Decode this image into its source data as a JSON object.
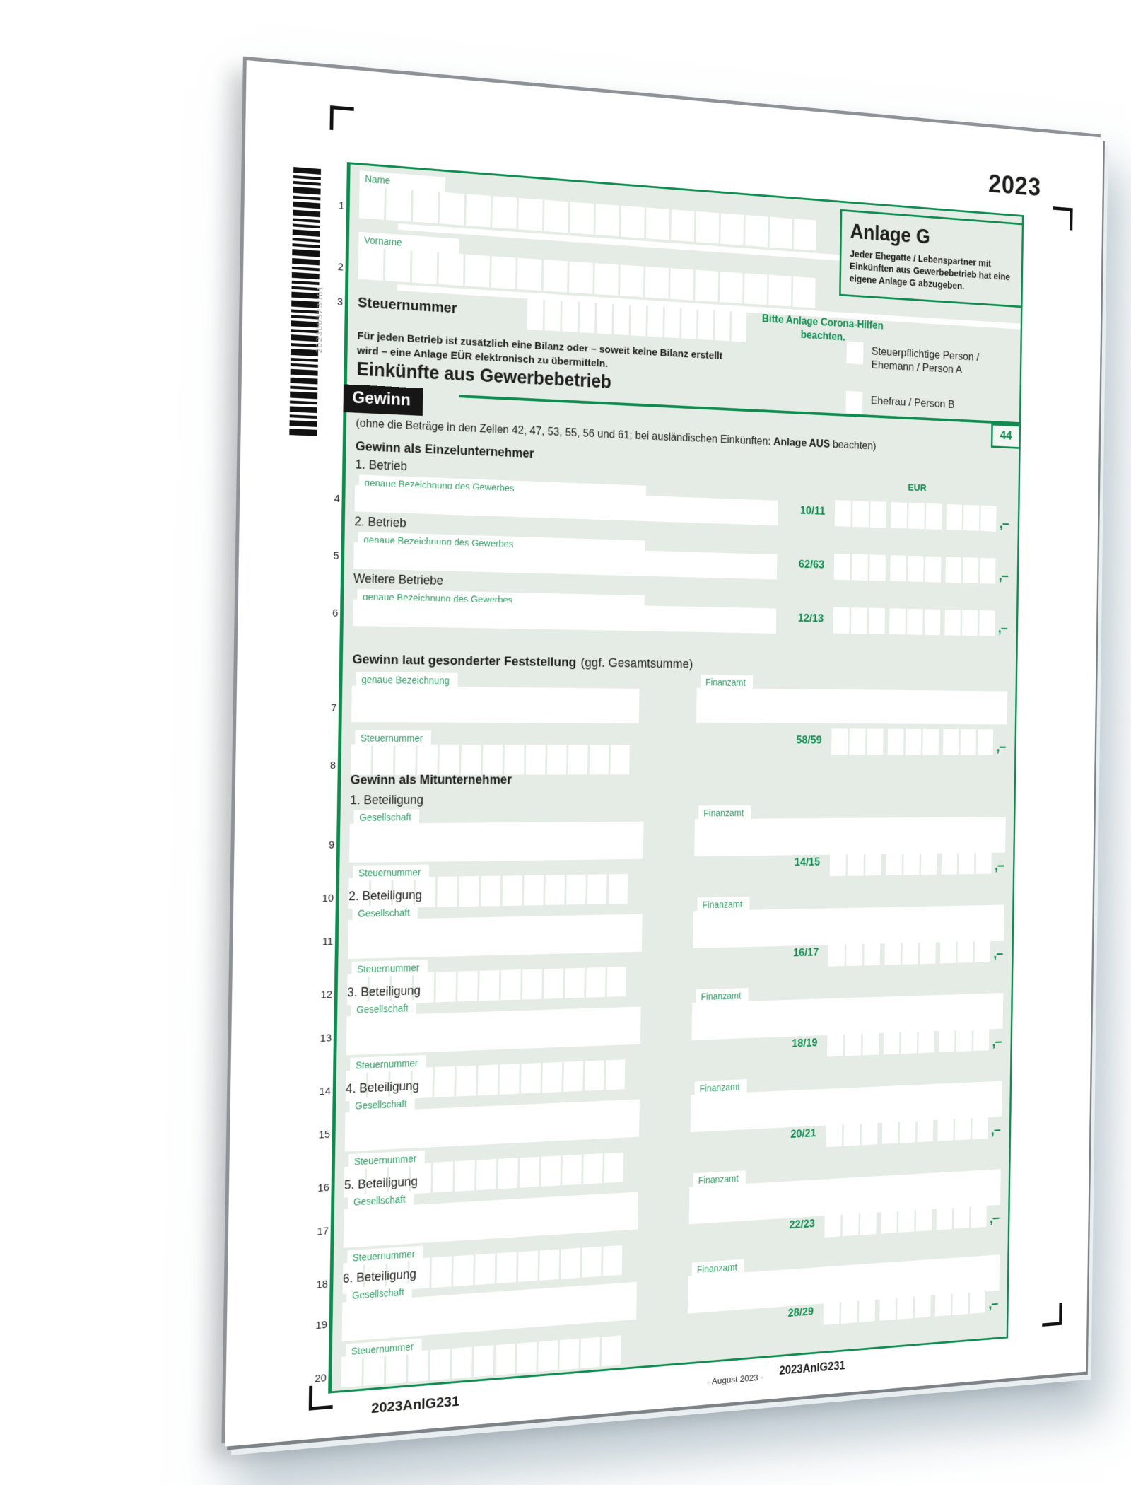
{
  "year": "2023",
  "barcode": {
    "number": "202300323001"
  },
  "page_header": {
    "name_label": "Name",
    "vorname_label": "Vorname",
    "steuernummer_label": "Steuernummer",
    "line_1": "1",
    "line_2": "2",
    "line_3": "3",
    "corona_note": "Bitte Anlage Corona-Hilfen beachten.",
    "bilanz_note": "Für jeden Betrieb ist zusätzlich eine Bilanz oder – soweit keine Bilanz erstellt wird – eine Anlage EÜR elektronisch zu übermitteln."
  },
  "anlage_box": {
    "title": "Anlage G",
    "note": "Jeder Ehegatte / Lebenspartner mit Einkünften aus Gewerbebetrieb hat eine eigene Anlage G abzugeben."
  },
  "person_checkboxes": [
    {
      "label": "Steuerpflichtige Person / Ehemann / Person A"
    },
    {
      "label": "Ehefrau / Person B"
    }
  ],
  "section_heading": "Einkünfte aus Gewerbebetrieb",
  "gewinn": {
    "bar_label": "Gewinn",
    "box_number": "44",
    "intro_prefix": "(ohne die Beträge in den Zeilen 42, 47, 53, 55, 56 und 61; bei ausländischen Einkünften: ",
    "intro_bold": "Anlage AUS",
    "intro_suffix": " beachten)",
    "eur_label": "EUR",
    "einzelunternehmer": {
      "heading": "Gewinn als Einzelunternehmer",
      "sub_label": "genaue Bezeichnung des Gewerbes",
      "rows": [
        {
          "line": "4",
          "label": "1. Betrieb",
          "code": "10/11"
        },
        {
          "line": "5",
          "label": "2. Betrieb",
          "code": "62/63"
        },
        {
          "line": "6",
          "label": "Weitere Betriebe",
          "code": "12/13"
        }
      ]
    },
    "feststellung": {
      "heading_bold": "Gewinn laut gesonderter Feststellung",
      "heading_normal": "(ggf. Gesamtsumme)",
      "bezeichnung_label": "genaue Bezeichnung",
      "finanzamt_label": "Finanzamt",
      "steuernummer_label": "Steuernummer",
      "line_top": "7",
      "line_bottom": "8",
      "code": "58/59"
    },
    "mitunternehmer": {
      "heading": "Gewinn als Mitunternehmer",
      "gesellschaft_label": "Gesellschaft",
      "finanzamt_label": "Finanzamt",
      "steuernummer_label": "Steuernummer",
      "blocks": [
        {
          "label": "1. Beteiligung",
          "line_top": "9",
          "line_bottom": "10",
          "code": "14/15"
        },
        {
          "label": "2. Beteiligung",
          "line_top": "11",
          "line_bottom": "12",
          "code": "16/17"
        },
        {
          "label": "3. Beteiligung",
          "line_top": "13",
          "line_bottom": "14",
          "code": "18/19"
        },
        {
          "label": "4. Beteiligung",
          "line_top": "15",
          "line_bottom": "16",
          "code": "20/21"
        },
        {
          "label": "5. Beteiligung",
          "line_top": "17",
          "line_bottom": "18",
          "code": "22/23"
        },
        {
          "label": "6. Beteiligung",
          "line_top": "19",
          "line_bottom": "20",
          "code": "28/29"
        }
      ]
    }
  },
  "amount_suffix": ",–",
  "footer": {
    "left_code": "2023AnlG231",
    "date_note": "- August 2023 -",
    "right_code": "2023AnlG231"
  },
  "colors": {
    "accent_green": "#0e8c4f",
    "label_green": "#2d9e63",
    "form_bg": "#e4ece5"
  }
}
